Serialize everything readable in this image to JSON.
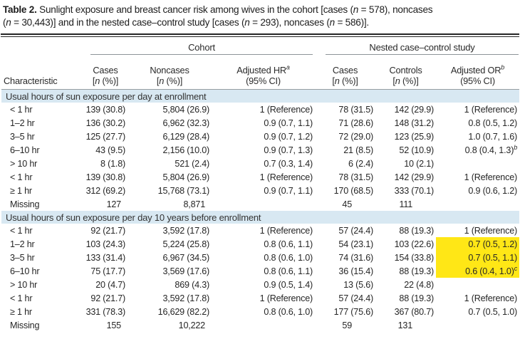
{
  "colors": {
    "section_band": "#d8e8f2",
    "highlight_yellow": "#ffe716",
    "rule_dark": "#252525",
    "rule_gray": "#8d9498",
    "text": "#262626"
  },
  "caption": {
    "segments": [
      {
        "t": "Table 2.",
        "b": true
      },
      {
        "t": " Sunlight exposure and breast cancer risk among wives in the cohort [cases ("
      },
      {
        "t": "n",
        "i": true
      },
      {
        "t": " = 578), noncases"
      },
      {
        "br": true
      },
      {
        "t": "("
      },
      {
        "t": "n",
        "i": true
      },
      {
        "t": " = 30,443)] and in the nested case–control study [cases ("
      },
      {
        "t": "n",
        "i": true
      },
      {
        "t": " = 293), noncases ("
      },
      {
        "t": "n",
        "i": true
      },
      {
        "t": " = 586)]."
      }
    ]
  },
  "table": {
    "characteristic_header": "Characteristic",
    "spanners": [
      {
        "label": "Cohort"
      },
      {
        "label": "Nested case–control study"
      }
    ],
    "columns": [
      {
        "l1": [
          {
            "t": "Cases"
          }
        ],
        "l2": [
          {
            "t": "["
          },
          {
            "t": "n",
            "i": true
          },
          {
            "t": " (%)]"
          }
        ]
      },
      {
        "l1": [
          {
            "t": "Noncases"
          }
        ],
        "l2": [
          {
            "t": "["
          },
          {
            "t": "n",
            "i": true
          },
          {
            "t": " (%)]"
          }
        ]
      },
      {
        "l1": [
          {
            "t": "Adjusted HR"
          },
          {
            "t": "a",
            "sup": true
          }
        ],
        "l2": [
          {
            "t": "(95% CI)"
          }
        ]
      },
      {
        "l1": [
          {
            "t": "Cases"
          }
        ],
        "l2": [
          {
            "t": "["
          },
          {
            "t": "n",
            "i": true
          },
          {
            "t": " (%)]"
          }
        ]
      },
      {
        "l1": [
          {
            "t": "Controls"
          }
        ],
        "l2": [
          {
            "t": "["
          },
          {
            "t": "n",
            "i": true
          },
          {
            "t": " (%)]"
          }
        ]
      },
      {
        "l1": [
          {
            "t": "Adjusted OR"
          },
          {
            "t": "b",
            "sup": true
          }
        ],
        "l2": [
          {
            "t": "(95% CI)"
          }
        ]
      }
    ],
    "sections": [
      {
        "header": "Usual hours of sun exposure per day at enrollment",
        "rows": [
          {
            "label": "< 1 hr",
            "cells": [
              "139 (30.8)",
              "5,804 (26.9)",
              "1 (Reference)",
              "78 (31.5)",
              "142 (29.9)",
              "1 (Reference)"
            ]
          },
          {
            "label": "1–2 hr",
            "cells": [
              "136 (30.2)",
              "6,962 (32.3)",
              "0.9 (0.7, 1.1)",
              "71 (28.6)",
              "148 (31.2)",
              "0.8 (0.5, 1.2)"
            ]
          },
          {
            "label": "3–5 hr",
            "cells": [
              "125 (27.7)",
              "6,129 (28.4)",
              "0.9 (0.7, 1.2)",
              "72 (29.0)",
              "123 (25.9)",
              "1.0 (0.7, 1.6)"
            ]
          },
          {
            "label": "6–10 hr",
            "cells": [
              "43 (9.5)",
              "2,156 (10.0)",
              "0.9 (0.7, 1.3)",
              "21 (8.5)",
              "52 (10.9)",
              {
                "t": "0.8 (0.4, 1.3)",
                "sup": "b"
              }
            ]
          },
          {
            "label": "> 10 hr",
            "cells": [
              "8 (1.8)",
              "521 (2.4)",
              "0.7 (0.3, 1.4)",
              "6 (2.4)",
              "10 (2.1)",
              ""
            ]
          },
          {
            "label": "< 1 hr",
            "cells": [
              "139 (30.8)",
              "5,804 (26.9)",
              "1 (Reference)",
              "78 (31.5)",
              "142 (29.9)",
              "1 (Reference)"
            ]
          },
          {
            "label": "≥ 1 hr",
            "cells": [
              "312 (69.2)",
              "15,768 (73.1)",
              "0.9 (0.7, 1.1)",
              "170 (68.5)",
              "333 (70.1)",
              "0.9 (0.6, 1.2)"
            ]
          },
          {
            "label": "Missing",
            "cells": [
              "127",
              "8,871",
              "",
              "45",
              "111",
              ""
            ]
          }
        ]
      },
      {
        "header": "Usual hours of sun exposure per day 10 years before enrollment",
        "rows": [
          {
            "label": "< 1 hr",
            "cells": [
              "92 (21.7)",
              "3,592 (17.8)",
              "1 (Reference)",
              "57 (24.4)",
              "88 (19.3)",
              "1 (Reference)"
            ]
          },
          {
            "label": "1–2 hr",
            "cells": [
              "103 (24.3)",
              "5,224 (25.8)",
              "0.8 (0.6, 1.1)",
              "54 (23.1)",
              "103 (22.6)",
              {
                "t": "0.7 (0.5, 1.2)",
                "hl": true
              }
            ]
          },
          {
            "label": "3–5 hr",
            "cells": [
              "133 (31.4)",
              "6,967 (34.5)",
              "0.8 (0.6, 1.0)",
              "74 (31.6)",
              "154 (33.8)",
              {
                "t": "0.7 (0.5, 1.1)",
                "hl": true
              }
            ]
          },
          {
            "label": "6–10 hr",
            "cells": [
              "75 (17.7)",
              "3,569 (17.6)",
              "0.8 (0.6, 1.1)",
              "36 (15.4)",
              "88 (19.3)",
              {
                "t": "0.6 (0.4, 1.0)",
                "sup": "c",
                "hl": true
              }
            ]
          },
          {
            "label": "> 10 hr",
            "cells": [
              "20 (4.7)",
              "869 (4.3)",
              "0.9 (0.5, 1.4)",
              "13 (5.6)",
              "22 (4.8)",
              ""
            ]
          },
          {
            "label": "< 1 hr",
            "cells": [
              "92 (21.7)",
              "3,592 (17.8)",
              "1 (Reference)",
              "57 (24.4)",
              "88 (19.3)",
              "1 (Reference)"
            ]
          },
          {
            "label": "≥ 1 hr",
            "cells": [
              "331 (78.3)",
              "16,629 (82.2)",
              "0.8 (0.6, 1.0)",
              "177 (75.6)",
              "367 (80.7)",
              "0.7 (0.5, 1.0)"
            ]
          },
          {
            "label": "Missing",
            "cells": [
              "155",
              "10,222",
              "",
              "59",
              "131",
              ""
            ]
          }
        ]
      }
    ]
  }
}
